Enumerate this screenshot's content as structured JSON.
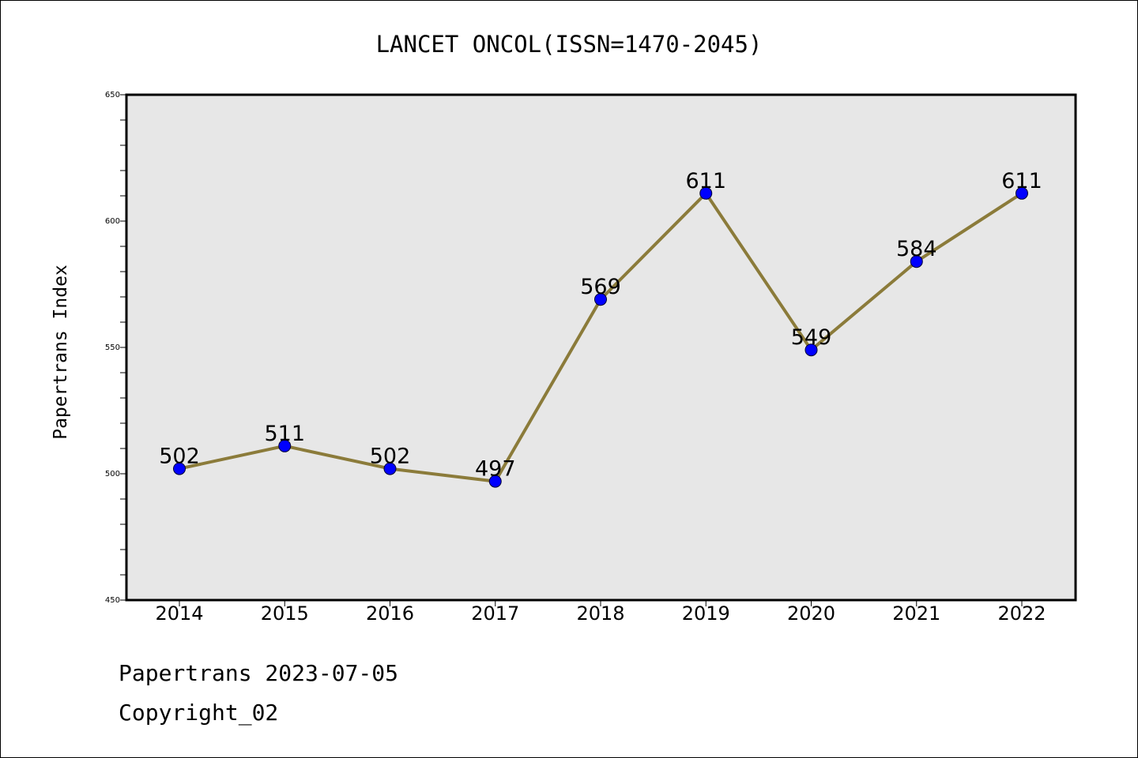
{
  "chart_data": {
    "type": "line",
    "title": "LANCET ONCOL(ISSN=1470-2045)",
    "xlabel": "",
    "ylabel": "Papertrans Index",
    "x": [
      "2014",
      "2015",
      "2016",
      "2017",
      "2018",
      "2019",
      "2020",
      "2021",
      "2022"
    ],
    "series": [
      {
        "values": [
          502,
          511,
          502,
          497,
          569,
          611,
          549,
          584,
          611
        ]
      }
    ],
    "data_labels": [
      "502",
      "511",
      "502",
      "497",
      "569",
      "611",
      "549",
      "584",
      "611"
    ],
    "ylim": [
      450,
      650
    ],
    "yticks": [
      "450",
      "500",
      "550",
      "600",
      "650"
    ],
    "grid": false,
    "legend": "none",
    "colors": {
      "line": "#8B7B3A",
      "marker": "#0000FF",
      "plot_background": "#E7E7E7"
    }
  },
  "footer": {
    "line1": "Papertrans 2023-07-05",
    "line2": "Copyright_02"
  }
}
